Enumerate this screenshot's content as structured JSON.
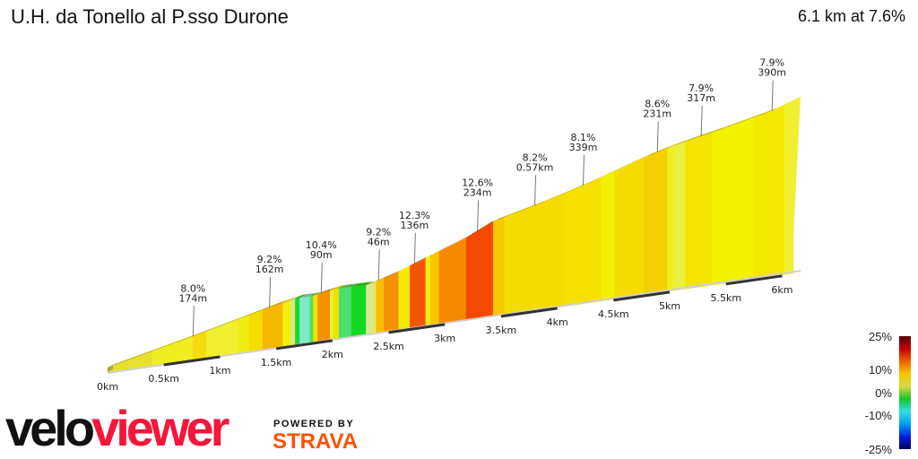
{
  "header": {
    "title": "U.H. da Tonello al P.sso Durone",
    "summary": "6.1 km at 7.6%"
  },
  "chart_data": {
    "type": "area",
    "title": "U.H. da Tonello al P.sso Durone",
    "subtitle": "6.1 km at 7.6%",
    "xlim": [
      0,
      6.1
    ],
    "x_unit": "km",
    "profile": {
      "distance_km": [
        0,
        0.76,
        1.44,
        1.67,
        1.83,
        2.03,
        2.31,
        2.55,
        2.79,
        3.19,
        3.41,
        3.83,
        4.23,
        4.78,
        5.02,
        5.42,
        5.9,
        6.1
      ],
      "elevation_gain_m": [
        0,
        50,
        98,
        112,
        112,
        122,
        120,
        140,
        166,
        208,
        239,
        269,
        302,
        354,
        372,
        396,
        427,
        448
      ]
    },
    "segments": [
      {
        "from": 0,
        "to": 0.4,
        "color": "#e8e030"
      },
      {
        "from": 0.4,
        "to": 0.76,
        "color": "#f0ee20"
      },
      {
        "from": 0.76,
        "to": 0.88,
        "color": "#f5dc10"
      },
      {
        "from": 0.88,
        "to": 1.16,
        "color": "#f0f030"
      },
      {
        "from": 1.16,
        "to": 1.26,
        "color": "#f2ec10"
      },
      {
        "from": 1.26,
        "to": 1.38,
        "color": "#f5dc00"
      },
      {
        "from": 1.38,
        "to": 1.56,
        "color": "#f5b800"
      },
      {
        "from": 1.56,
        "to": 1.63,
        "color": "#f2ee10"
      },
      {
        "from": 1.63,
        "to": 1.67,
        "color": "#e0e880"
      },
      {
        "from": 1.67,
        "to": 1.71,
        "color": "#14d838"
      },
      {
        "from": 1.71,
        "to": 1.8,
        "color": "#80e8c8"
      },
      {
        "from": 1.8,
        "to": 1.83,
        "color": "#50e060"
      },
      {
        "from": 1.83,
        "to": 1.87,
        "color": "#f5e000"
      },
      {
        "from": 1.87,
        "to": 1.98,
        "color": "#f59000"
      },
      {
        "from": 1.98,
        "to": 2.01,
        "color": "#f0f040"
      },
      {
        "from": 2.01,
        "to": 2.06,
        "color": "#f2e000"
      },
      {
        "from": 2.06,
        "to": 2.17,
        "color": "#48e070"
      },
      {
        "from": 2.17,
        "to": 2.3,
        "color": "#14d820"
      },
      {
        "from": 2.3,
        "to": 2.36,
        "color": "#d8e890"
      },
      {
        "from": 2.36,
        "to": 2.39,
        "color": "#e8e860"
      },
      {
        "from": 2.39,
        "to": 2.46,
        "color": "#f5c000"
      },
      {
        "from": 2.46,
        "to": 2.59,
        "color": "#f59000"
      },
      {
        "from": 2.59,
        "to": 2.69,
        "color": "#f5e800"
      },
      {
        "from": 2.69,
        "to": 2.83,
        "color": "#f55500"
      },
      {
        "from": 2.83,
        "to": 2.87,
        "color": "#f2ee10"
      },
      {
        "from": 2.87,
        "to": 2.95,
        "color": "#f5c800"
      },
      {
        "from": 2.95,
        "to": 3.19,
        "color": "#f58a00"
      },
      {
        "from": 3.19,
        "to": 3.43,
        "color": "#f54800"
      },
      {
        "from": 3.43,
        "to": 3.53,
        "color": "#f5c800"
      },
      {
        "from": 3.53,
        "to": 4.07,
        "color": "#f5dc00"
      },
      {
        "from": 4.07,
        "to": 4.39,
        "color": "#f5e000"
      },
      {
        "from": 4.39,
        "to": 4.51,
        "color": "#f5f000"
      },
      {
        "from": 4.51,
        "to": 4.77,
        "color": "#f5dc00"
      },
      {
        "from": 4.77,
        "to": 4.98,
        "color": "#f5d000"
      },
      {
        "from": 4.98,
        "to": 5.04,
        "color": "#f2ee20"
      },
      {
        "from": 5.04,
        "to": 5.14,
        "color": "#e8f040"
      },
      {
        "from": 5.14,
        "to": 5.38,
        "color": "#f5e400"
      },
      {
        "from": 5.38,
        "to": 5.74,
        "color": "#f5f200"
      },
      {
        "from": 5.74,
        "to": 6.02,
        "color": "#f5e800"
      },
      {
        "from": 6.02,
        "to": 6.1,
        "color": "#f0f030"
      }
    ],
    "annotations": [
      {
        "at_km": 0.76,
        "gradient": "8.0%",
        "length": "174m"
      },
      {
        "at_km": 1.44,
        "gradient": "9.2%",
        "length": "162m"
      },
      {
        "at_km": 1.9,
        "gradient": "10.4%",
        "length": "90m"
      },
      {
        "at_km": 2.41,
        "gradient": "9.2%",
        "length": "46m"
      },
      {
        "at_km": 2.73,
        "gradient": "12.3%",
        "length": "136m"
      },
      {
        "at_km": 3.29,
        "gradient": "12.6%",
        "length": "234m"
      },
      {
        "at_km": 3.8,
        "gradient": "8.2%",
        "length": "0.57km"
      },
      {
        "at_km": 4.23,
        "gradient": "8.1%",
        "length": "339m"
      },
      {
        "at_km": 4.89,
        "gradient": "8.6%",
        "length": "231m"
      },
      {
        "at_km": 5.28,
        "gradient": "7.9%",
        "length": "317m"
      },
      {
        "at_km": 5.91,
        "gradient": "7.9%",
        "length": "390m"
      }
    ],
    "x_ticks": [
      {
        "km": 0,
        "label": "0km"
      },
      {
        "km": 0.5,
        "label": "0.5km"
      },
      {
        "km": 1,
        "label": "1km"
      },
      {
        "km": 1.5,
        "label": "1.5km"
      },
      {
        "km": 2,
        "label": "2km"
      },
      {
        "km": 2.5,
        "label": "2.5km"
      },
      {
        "km": 3,
        "label": "3km"
      },
      {
        "km": 3.5,
        "label": "3.5km"
      },
      {
        "km": 4,
        "label": "4km"
      },
      {
        "km": 4.5,
        "label": "4.5km"
      },
      {
        "km": 5,
        "label": "5km"
      },
      {
        "km": 5.5,
        "label": "5.5km"
      },
      {
        "km": 6,
        "label": "6km"
      }
    ],
    "legend": {
      "position": "bottom-right",
      "labels": [
        {
          "value": 25,
          "label": "25%"
        },
        {
          "value": 10,
          "label": "10%"
        },
        {
          "value": 0,
          "label": "0%"
        },
        {
          "value": -10,
          "label": "-10%"
        },
        {
          "value": -25,
          "label": "-25%"
        }
      ],
      "colors": [
        "#5a0000",
        "#c80000",
        "#f06000",
        "#f5c800",
        "#d8d840",
        "#14c828",
        "#30e0e0",
        "#00a0f0",
        "#0020e0",
        "#000060"
      ]
    }
  },
  "branding": {
    "logo_part1": "velo",
    "logo_part2": "viewer",
    "powered_by": "POWERED BY",
    "strava": "STRAVA",
    "accent": "#f5163a",
    "strava_color": "#fc5200"
  }
}
